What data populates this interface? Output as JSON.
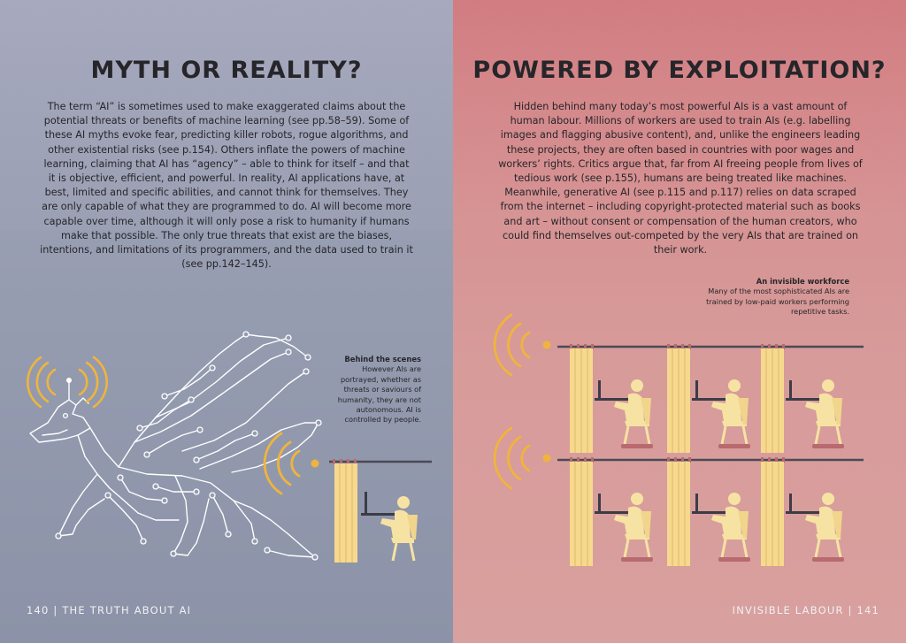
{
  "left_page": {
    "title": "MYTH OR REALITY?",
    "body": "The term “AI” is sometimes used to make exaggerated claims about the potential threats or benefits of machine learning (see pp.58–59). Some of these AI myths evoke fear, predicting killer robots, rogue algorithms, and other existential risks (see p.154). Others inflate the powers of machine learning, claiming that AI has “agency” – able to think for itself – and that it is objective, efficient, and powerful. In reality, AI applications have, at best, limited and specific abilities, and cannot think for themselves. They are only capable of what they are programmed to do. AI will become more capable over time, although it will only pose a risk to humanity if humans make that possible. The only true threats that exist are the biases, intentions, and limitations of its programmers, and the data used to train it (see pp.142–145).",
    "caption": {
      "title": "Behind the scenes",
      "text": "However AIs are portrayed, whether as threats or saviours of humanity, they are not autonomous. AI is controlled by people."
    },
    "folio": "140 | THE TRUTH ABOUT AI"
  },
  "right_page": {
    "title": "POWERED BY EXPLOITATION?",
    "body": "Hidden behind many today’s most powerful AIs is a vast amount of human labour. Millions of workers are used to train AIs (e.g. labelling images and flagging abusive content), and, unlike the engineers leading these projects, they are often based in countries with poor wages and workers’ rights. Critics argue that, far from AI freeing people from lives of tedious work (see p.155), humans are being treated like machines. Meanwhile, generative AI (see p.115 and p.117) relies on data scraped from the internet – including copyright-protected material such as books and art – without consent or compensation of the human creators, who could find themselves out-competed by the very AIs that are trained on their work.",
    "caption": {
      "title": "An invisible workforce",
      "text": "Many of the most sophisticated AIs are trained by low-paid workers performing repetitive tasks."
    },
    "folio": "INVISIBLE LABOUR | 141"
  },
  "colors": {
    "left_background": "#959cb0",
    "right_background": "#d69393",
    "text": "#26262a",
    "signal": "#f0b43c",
    "curtain": "#f6d98e",
    "figure": "#f6e3a3",
    "rail": "#4a4a55",
    "circuit": "#ffffff",
    "seat_base": "#b86a6e"
  },
  "icons": {
    "dragon": "circuit-dragon-icon",
    "signal": "signal-waves-icon",
    "worker": "seated-worker-at-computer-icon"
  }
}
